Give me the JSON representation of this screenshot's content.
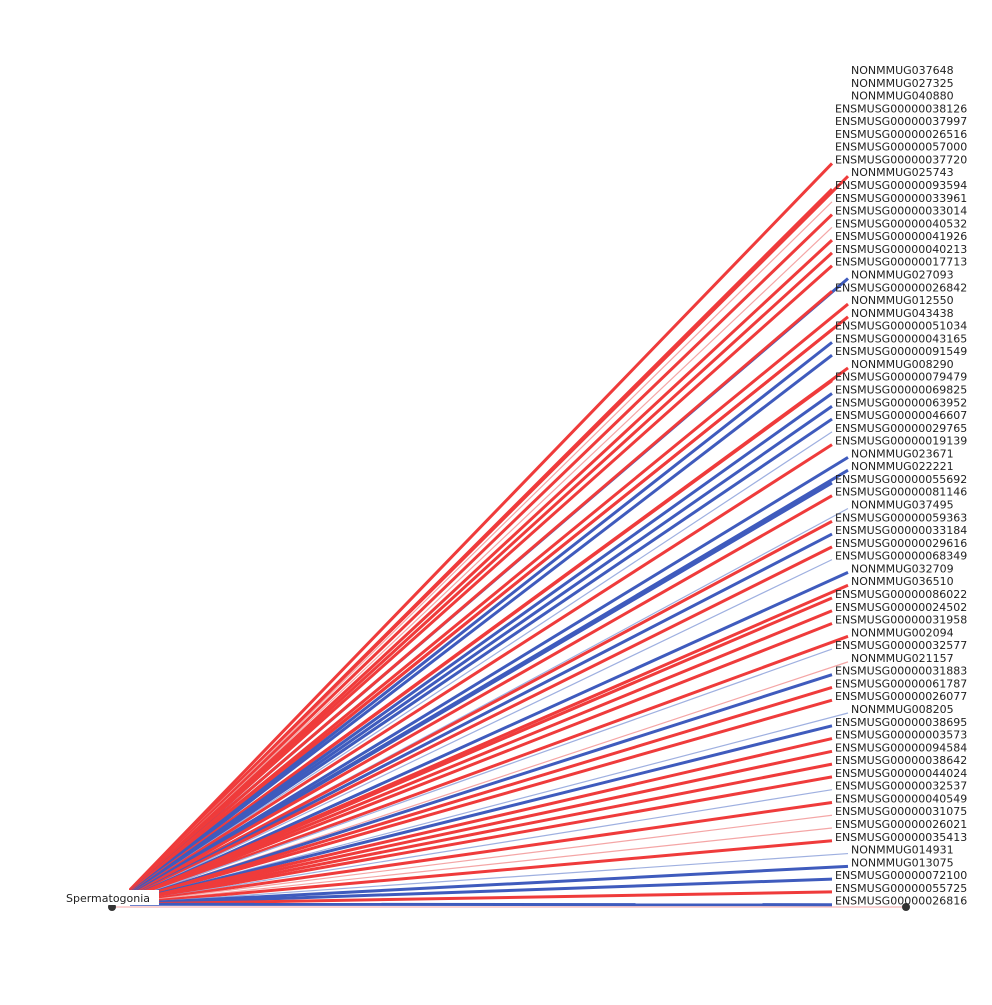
{
  "source_node": {
    "label": "Spermatogonia"
  },
  "colors": {
    "up_strong": "#ef3b3b",
    "up_weak": "#f4a6a6",
    "down_strong": "#3f5bbd",
    "down_weak": "#9fb0e0",
    "node": "#333333"
  },
  "targets": [
    {
      "label": "NONMMUG037648",
      "dir": "up",
      "w": 0
    },
    {
      "label": "NONMMUG027325",
      "dir": "up",
      "w": 0
    },
    {
      "label": "NONMMUG040880",
      "dir": "up",
      "w": 0
    },
    {
      "label": "ENSMUSG00000038126",
      "dir": "up",
      "w": 0
    },
    {
      "label": "ENSMUSG00000037997",
      "dir": "up",
      "w": 0
    },
    {
      "label": "ENSMUSG00000026516",
      "dir": "up",
      "w": 0
    },
    {
      "label": "ENSMUSG00000057000",
      "dir": "up",
      "w": 0
    },
    {
      "label": "ENSMUSG00000037720",
      "dir": "up",
      "w": 3
    },
    {
      "label": "NONMMUG025743",
      "dir": "up",
      "w": 3
    },
    {
      "label": "ENSMUSG00000093594",
      "dir": "up",
      "w": 3
    },
    {
      "label": "ENSMUSG00000033961",
      "dir": "up",
      "w": 1
    },
    {
      "label": "ENSMUSG00000033014",
      "dir": "up",
      "w": 3
    },
    {
      "label": "ENSMUSG00000040532",
      "dir": "up",
      "w": 1
    },
    {
      "label": "ENSMUSG00000041926",
      "dir": "up",
      "w": 3
    },
    {
      "label": "ENSMUSG00000040213",
      "dir": "up",
      "w": 3
    },
    {
      "label": "ENSMUSG00000017713",
      "dir": "up",
      "w": 3
    },
    {
      "label": "NONMMUG027093",
      "dir": "down",
      "w": 3
    },
    {
      "label": "ENSMUSG00000026842",
      "dir": "up",
      "w": 3
    },
    {
      "label": "NONMMUG012550",
      "dir": "up",
      "w": 3
    },
    {
      "label": "NONMMUG043438",
      "dir": "up",
      "w": 3
    },
    {
      "label": "ENSMUSG00000051034",
      "dir": "up",
      "w": 3
    },
    {
      "label": "ENSMUSG00000043165",
      "dir": "down",
      "w": 3
    },
    {
      "label": "ENSMUSG00000091549",
      "dir": "down",
      "w": 3
    },
    {
      "label": "NONMMUG008290",
      "dir": "up",
      "w": 3
    },
    {
      "label": "ENSMUSG00000079479",
      "dir": "up",
      "w": 3
    },
    {
      "label": "ENSMUSG00000069825",
      "dir": "down",
      "w": 3
    },
    {
      "label": "ENSMUSG00000063952",
      "dir": "down",
      "w": 3
    },
    {
      "label": "ENSMUSG00000046607",
      "dir": "down",
      "w": 3
    },
    {
      "label": "ENSMUSG00000029765",
      "dir": "down",
      "w": 1
    },
    {
      "label": "ENSMUSG00000019139",
      "dir": "up",
      "w": 3
    },
    {
      "label": "NONMMUG023671",
      "dir": "down",
      "w": 3
    },
    {
      "label": "NONMMUG022221",
      "dir": "down",
      "w": 3
    },
    {
      "label": "ENSMUSG00000055692",
      "dir": "down",
      "w": 3
    },
    {
      "label": "ENSMUSG00000081146",
      "dir": "up",
      "w": 3
    },
    {
      "label": "NONMMUG037495",
      "dir": "down",
      "w": 1
    },
    {
      "label": "ENSMUSG00000059363",
      "dir": "up",
      "w": 3
    },
    {
      "label": "ENSMUSG00000033184",
      "dir": "down",
      "w": 3
    },
    {
      "label": "ENSMUSG00000029616",
      "dir": "up",
      "w": 3
    },
    {
      "label": "ENSMUSG00000068349",
      "dir": "down",
      "w": 1
    },
    {
      "label": "NONMMUG032709",
      "dir": "down",
      "w": 3
    },
    {
      "label": "NONMMUG036510",
      "dir": "up",
      "w": 3
    },
    {
      "label": "ENSMUSG00000086022",
      "dir": "up",
      "w": 3
    },
    {
      "label": "ENSMUSG00000024502",
      "dir": "up",
      "w": 3
    },
    {
      "label": "ENSMUSG00000031958",
      "dir": "up",
      "w": 3
    },
    {
      "label": "NONMMUG002094",
      "dir": "up",
      "w": 3
    },
    {
      "label": "ENSMUSG00000032577",
      "dir": "down",
      "w": 1
    },
    {
      "label": "NONMMUG021157",
      "dir": "up",
      "w": 1
    },
    {
      "label": "ENSMUSG00000031883",
      "dir": "down",
      "w": 3
    },
    {
      "label": "ENSMUSG00000061787",
      "dir": "up",
      "w": 3
    },
    {
      "label": "ENSMUSG00000026077",
      "dir": "up",
      "w": 3
    },
    {
      "label": "NONMMUG008205",
      "dir": "down",
      "w": 1
    },
    {
      "label": "ENSMUSG00000038695",
      "dir": "down",
      "w": 3
    },
    {
      "label": "ENSMUSG00000003573",
      "dir": "up",
      "w": 3
    },
    {
      "label": "ENSMUSG00000094584",
      "dir": "up",
      "w": 3
    },
    {
      "label": "ENSMUSG00000038642",
      "dir": "up",
      "w": 3
    },
    {
      "label": "ENSMUSG00000044024",
      "dir": "up",
      "w": 3
    },
    {
      "label": "ENSMUSG00000032537",
      "dir": "down",
      "w": 1
    },
    {
      "label": "ENSMUSG00000040549",
      "dir": "up",
      "w": 3
    },
    {
      "label": "ENSMUSG00000031075",
      "dir": "up",
      "w": 1
    },
    {
      "label": "ENSMUSG00000026021",
      "dir": "up",
      "w": 1
    },
    {
      "label": "ENSMUSG00000035413",
      "dir": "up",
      "w": 3
    },
    {
      "label": "NONMMUG014931",
      "dir": "down",
      "w": 1
    },
    {
      "label": "NONMMUG013075",
      "dir": "down",
      "w": 3
    },
    {
      "label": "ENSMUSG00000072100",
      "dir": "down",
      "w": 3
    },
    {
      "label": "ENSMUSG00000055725",
      "dir": "up",
      "w": 3
    },
    {
      "label": "ENSMUSG00000026816",
      "dir": "down",
      "w": 3
    }
  ]
}
